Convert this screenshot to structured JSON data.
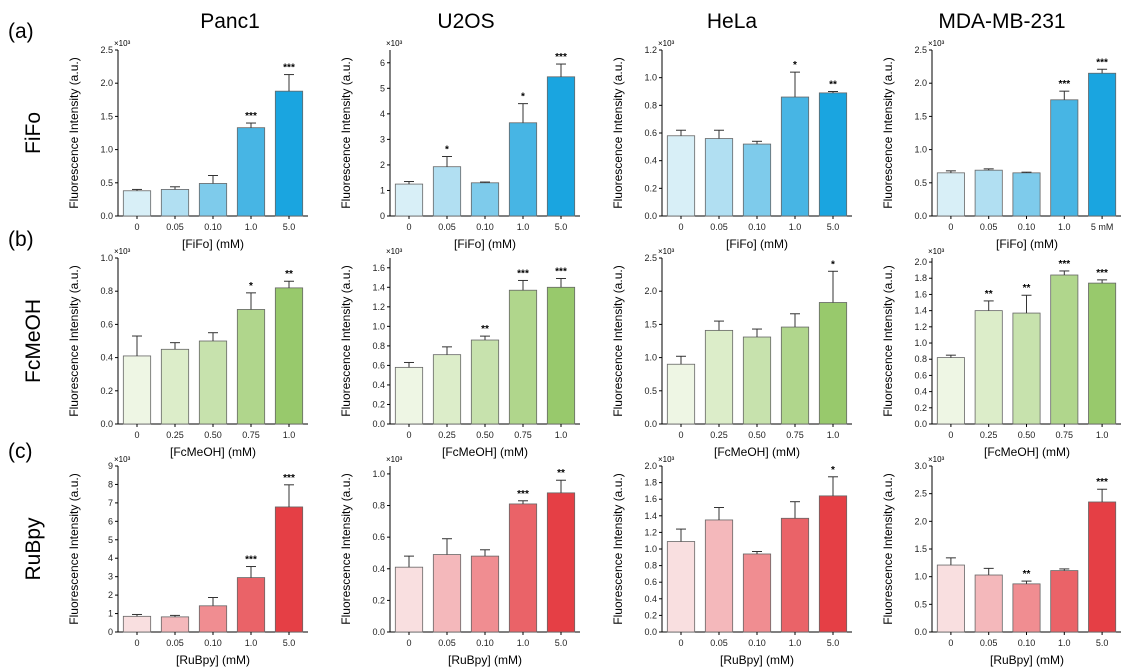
{
  "columns": [
    "Panc1",
    "U2OS",
    "HeLa",
    "MDA-MB-231"
  ],
  "rows": [
    {
      "letter": "(a)",
      "label": "FiFo",
      "xlabel": "[FiFo] (mM)",
      "colors": [
        "#d8eff7",
        "#b1dff2",
        "#7ecbeb",
        "#47b5e4",
        "#1aa5e0"
      ]
    },
    {
      "letter": "(b)",
      "label": "FcMeOH",
      "xlabel": "[FcMeOH] (mM)",
      "colors": [
        "#eef6e4",
        "#dcedc9",
        "#c7e2ad",
        "#b0d68c",
        "#98c96c"
      ]
    },
    {
      "letter": "(c)",
      "label": "RuBpy",
      "xlabel": "[RuBpy] (mM)",
      "colors": [
        "#f9dfe0",
        "#f4b8bb",
        "#f08d91",
        "#ea6368",
        "#e53f45"
      ]
    }
  ],
  "ylabel": "Fluorescence Intensity (a.u.)",
  "multiplier": "×10³",
  "chart_data": [
    {
      "type": "bar",
      "row": 0,
      "col": 0,
      "categories": [
        "0",
        "0.05",
        "0.10",
        "1.0",
        "5.0"
      ],
      "values": [
        0.38,
        0.4,
        0.49,
        1.33,
        1.88
      ],
      "errors": [
        0.02,
        0.04,
        0.12,
        0.07,
        0.25
      ],
      "sig": [
        "",
        "",
        "",
        "***",
        "***"
      ],
      "ylim": [
        0,
        2.5
      ],
      "yticks": [
        "0.0",
        "0.5",
        "1.0",
        "1.5",
        "2.0",
        "2.5"
      ],
      "xlabel": "[FiFo] (mM)",
      "ylabel": "Fluorescence Intensity (a.u.)"
    },
    {
      "type": "bar",
      "row": 0,
      "col": 1,
      "categories": [
        "0",
        "0.05",
        "0.10",
        "1.0",
        "5.0"
      ],
      "values": [
        1.25,
        1.93,
        1.3,
        3.65,
        5.45
      ],
      "errors": [
        0.1,
        0.4,
        0.03,
        0.75,
        0.5
      ],
      "sig": [
        "",
        "*",
        "",
        "*",
        "***"
      ],
      "ylim": [
        0,
        6.5
      ],
      "yticks": [
        "0",
        "1",
        "2",
        "3",
        "4",
        "5",
        "6"
      ],
      "xlabel": "[FiFo] (mM)",
      "ylabel": "Fluorescence Intensity (a.u.)"
    },
    {
      "type": "bar",
      "row": 0,
      "col": 2,
      "categories": [
        "0",
        "0.05",
        "0.10",
        "1.0",
        "5.0"
      ],
      "values": [
        0.58,
        0.56,
        0.52,
        0.86,
        0.89
      ],
      "errors": [
        0.04,
        0.06,
        0.02,
        0.18,
        0.01
      ],
      "sig": [
        "",
        "",
        "",
        "*",
        "**"
      ],
      "ylim": [
        0,
        1.2
      ],
      "yticks": [
        "0.0",
        "0.2",
        "0.4",
        "0.6",
        "0.8",
        "1.0",
        "1.2"
      ],
      "xlabel": "[FiFo] (mM)",
      "ylabel": "Fluorescence Intensity (a.u.)"
    },
    {
      "type": "bar",
      "row": 0,
      "col": 3,
      "categories": [
        "0",
        "0.05",
        "0.10",
        "1.0",
        "5 mM"
      ],
      "values": [
        0.65,
        0.69,
        0.65,
        1.75,
        2.15
      ],
      "errors": [
        0.03,
        0.02,
        0.01,
        0.13,
        0.06
      ],
      "sig": [
        "",
        "",
        "",
        "***",
        "***"
      ],
      "ylim": [
        0,
        2.5
      ],
      "yticks": [
        "0.0",
        "0.5",
        "1.0",
        "1.5",
        "2.0",
        "2.5"
      ],
      "xlabel": "[FiFo] (mM)",
      "ylabel": "Fluorescence Intensity (a.u.)"
    },
    {
      "type": "bar",
      "row": 1,
      "col": 0,
      "categories": [
        "0",
        "0.25",
        "0.50",
        "0.75",
        "1.0"
      ],
      "values": [
        0.41,
        0.45,
        0.5,
        0.69,
        0.82
      ],
      "errors": [
        0.12,
        0.04,
        0.05,
        0.1,
        0.04
      ],
      "sig": [
        "",
        "",
        "",
        "*",
        "**"
      ],
      "ylim": [
        0,
        1.0
      ],
      "yticks": [
        "0.0",
        "0.2",
        "0.4",
        "0.6",
        "0.8",
        "1.0"
      ],
      "xlabel": "[FcMeOH] (mM)",
      "ylabel": "Fluorescence Intensity (a.u.)"
    },
    {
      "type": "bar",
      "row": 1,
      "col": 1,
      "categories": [
        "0",
        "0.25",
        "0.50",
        "0.75",
        "1.0"
      ],
      "values": [
        0.58,
        0.71,
        0.86,
        1.37,
        1.4
      ],
      "errors": [
        0.05,
        0.08,
        0.04,
        0.1,
        0.09
      ],
      "sig": [
        "",
        "",
        "**",
        "***",
        "***"
      ],
      "ylim": [
        0,
        1.7
      ],
      "yticks": [
        "0.0",
        "0.2",
        "0.4",
        "0.6",
        "0.8",
        "1.0",
        "1.2",
        "1.4",
        "1.6"
      ],
      "xlabel": "[FcMeOH] (mM)",
      "ylabel": "Fluorescence Intensity (a.u.)"
    },
    {
      "type": "bar",
      "row": 1,
      "col": 2,
      "categories": [
        "0",
        "0.25",
        "0.50",
        "0.75",
        "1.0"
      ],
      "values": [
        0.9,
        1.41,
        1.31,
        1.46,
        1.83
      ],
      "errors": [
        0.12,
        0.14,
        0.12,
        0.2,
        0.47
      ],
      "sig": [
        "",
        "",
        "",
        "",
        "*"
      ],
      "ylim": [
        0,
        2.5
      ],
      "yticks": [
        "0.0",
        "0.5",
        "1.0",
        "1.5",
        "2.0",
        "2.5"
      ],
      "xlabel": "[FcMeOH] (mM)",
      "ylabel": "Fluorescence Intensity (a.u.)"
    },
    {
      "type": "bar",
      "row": 1,
      "col": 3,
      "categories": [
        "0",
        "0.25",
        "0.50",
        "0.75",
        "1.0"
      ],
      "values": [
        0.82,
        1.4,
        1.37,
        1.84,
        1.74
      ],
      "errors": [
        0.03,
        0.12,
        0.22,
        0.05,
        0.04
      ],
      "sig": [
        "",
        "**",
        "**",
        "***",
        "***"
      ],
      "ylim": [
        0,
        2.05
      ],
      "yticks": [
        "0.0",
        "0.2",
        "0.4",
        "0.6",
        "0.8",
        "1.0",
        "1.2",
        "1.4",
        "1.6",
        "1.8",
        "2.0"
      ],
      "xlabel": "[FcMeOH] (mM)",
      "ylabel": "Fluorescence Intensity (a.u.)"
    },
    {
      "type": "bar",
      "row": 2,
      "col": 0,
      "categories": [
        "0",
        "0.05",
        "0.10",
        "1.0",
        "5.0"
      ],
      "values": [
        0.85,
        0.82,
        1.42,
        2.95,
        6.78
      ],
      "errors": [
        0.1,
        0.08,
        0.45,
        0.6,
        1.2
      ],
      "sig": [
        "",
        "",
        "",
        "***",
        "***"
      ],
      "ylim": [
        0,
        9
      ],
      "yticks": [
        "0",
        "1",
        "2",
        "3",
        "4",
        "5",
        "6",
        "7",
        "8",
        "9"
      ],
      "xlabel": "[RuBpy] (mM)",
      "ylabel": "Fluorescence Intensity (a.u.)"
    },
    {
      "type": "bar",
      "row": 2,
      "col": 1,
      "categories": [
        "0",
        "0.05",
        "0.10",
        "1.0",
        "5.0"
      ],
      "values": [
        0.41,
        0.49,
        0.48,
        0.81,
        0.88
      ],
      "errors": [
        0.07,
        0.1,
        0.04,
        0.02,
        0.08
      ],
      "sig": [
        "",
        "",
        "",
        "***",
        "**"
      ],
      "ylim": [
        0,
        1.05
      ],
      "yticks": [
        "0.0",
        "0.2",
        "0.4",
        "0.6",
        "0.8",
        "1.0"
      ],
      "xlabel": "[RuBpy] (mM)",
      "ylabel": "Fluorescence Intensity (a.u.)"
    },
    {
      "type": "bar",
      "row": 2,
      "col": 2,
      "categories": [
        "0",
        "0.05",
        "0.10",
        "1.0",
        "5.0"
      ],
      "values": [
        1.09,
        1.35,
        0.94,
        1.37,
        1.64
      ],
      "errors": [
        0.15,
        0.15,
        0.03,
        0.2,
        0.23
      ],
      "sig": [
        "",
        "",
        "",
        "",
        "*"
      ],
      "ylim": [
        0,
        2.0
      ],
      "yticks": [
        "0.0",
        "0.2",
        "0.4",
        "0.6",
        "0.8",
        "1.0",
        "1.2",
        "1.4",
        "1.6",
        "1.8",
        "2.0"
      ],
      "xlabel": "[RuBpy] (mM)",
      "ylabel": "Fluorescence Intensity (a.u.)"
    },
    {
      "type": "bar",
      "row": 2,
      "col": 3,
      "categories": [
        "0",
        "0.05",
        "0.10",
        "1.0",
        "5.0"
      ],
      "values": [
        1.21,
        1.03,
        0.87,
        1.11,
        2.35
      ],
      "errors": [
        0.13,
        0.12,
        0.05,
        0.03,
        0.23
      ],
      "sig": [
        "",
        "",
        "**",
        "",
        "***"
      ],
      "ylim": [
        0,
        3.0
      ],
      "yticks": [
        "0.0",
        "0.5",
        "1.0",
        "1.5",
        "2.0",
        "2.5",
        "3.0"
      ],
      "xlabel": "[RuBpy] (mM)",
      "ylabel": "Fluorescence Intensity (a.u.)"
    }
  ]
}
